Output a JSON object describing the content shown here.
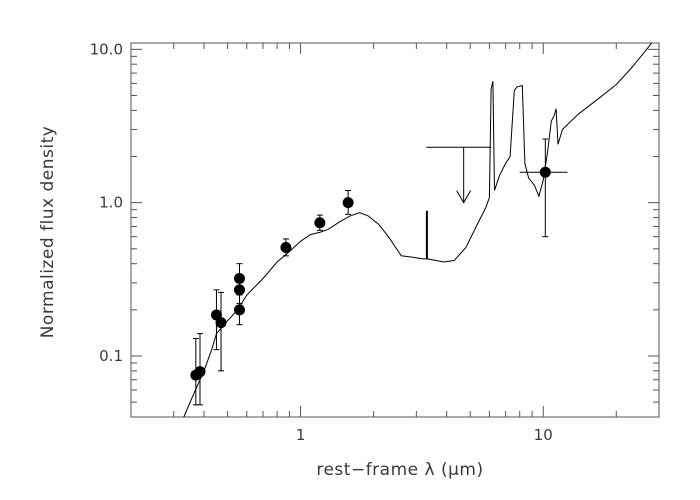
{
  "chart_data": {
    "type": "scatter",
    "title": "",
    "xlabel": "rest−frame λ (μm)",
    "ylabel": "Normalized flux density",
    "xscale": "log",
    "yscale": "log",
    "xlim": [
      0.2,
      30
    ],
    "ylim": [
      0.04,
      11
    ],
    "xticks": [
      {
        "value": 1,
        "label": "1"
      },
      {
        "value": 10,
        "label": "10"
      }
    ],
    "yticks": [
      {
        "value": 0.1,
        "label": "0.1"
      },
      {
        "value": 1.0,
        "label": "1.0"
      },
      {
        "value": 10.0,
        "label": "10.0"
      }
    ],
    "grid": false,
    "legend": "none",
    "colors": {
      "axes": "#555555",
      "data": "#000000",
      "text": "#3a3a3a"
    },
    "points": [
      {
        "x": 0.37,
        "y": 0.075,
        "ylow": 0.048,
        "yhigh": 0.13
      },
      {
        "x": 0.385,
        "y": 0.079,
        "ylow": 0.048,
        "yhigh": 0.14
      },
      {
        "x": 0.45,
        "y": 0.185,
        "ylow": 0.11,
        "yhigh": 0.27
      },
      {
        "x": 0.47,
        "y": 0.165,
        "ylow": 0.08,
        "yhigh": 0.26
      },
      {
        "x": 0.56,
        "y": 0.32,
        "ylow": 0.26,
        "yhigh": 0.4
      },
      {
        "x": 0.56,
        "y": 0.27,
        "ylow": 0.22,
        "yhigh": 0.34
      },
      {
        "x": 0.56,
        "y": 0.2,
        "ylow": 0.16,
        "yhigh": 0.25
      },
      {
        "x": 0.87,
        "y": 0.51,
        "ylow": 0.45,
        "yhigh": 0.58
      },
      {
        "x": 1.2,
        "y": 0.74,
        "ylow": 0.66,
        "yhigh": 0.83
      },
      {
        "x": 1.57,
        "y": 1.0,
        "ylow": 0.84,
        "yhigh": 1.2
      },
      {
        "x": 10.2,
        "y": 1.58,
        "ylow": 0.6,
        "yhigh": 2.6,
        "xlow": 8.0,
        "xhigh": 12.6
      }
    ],
    "upper_limit": {
      "x": 4.7,
      "y": 2.3,
      "xlow": 3.3,
      "xhigh": 6.1,
      "arrow_to": 1.0
    },
    "model": [
      [
        0.33,
        0.04
      ],
      [
        0.36,
        0.055
      ],
      [
        0.4,
        0.08
      ],
      [
        0.43,
        0.11
      ],
      [
        0.45,
        0.14
      ],
      [
        0.5,
        0.17
      ],
      [
        0.55,
        0.2
      ],
      [
        0.6,
        0.25
      ],
      [
        0.7,
        0.32
      ],
      [
        0.8,
        0.41
      ],
      [
        0.9,
        0.48
      ],
      [
        1.0,
        0.56
      ],
      [
        1.1,
        0.62
      ],
      [
        1.2,
        0.64
      ],
      [
        1.3,
        0.67
      ],
      [
        1.45,
        0.75
      ],
      [
        1.6,
        0.82
      ],
      [
        1.75,
        0.86
      ],
      [
        1.9,
        0.82
      ],
      [
        2.1,
        0.72
      ],
      [
        2.3,
        0.6
      ],
      [
        2.6,
        0.45
      ],
      [
        2.9,
        0.44
      ],
      [
        3.2,
        0.43
      ],
      [
        3.3,
        0.43
      ],
      [
        3.3,
        0.88
      ],
      [
        3.33,
        0.88
      ],
      [
        3.33,
        0.43
      ],
      [
        3.6,
        0.42
      ],
      [
        3.9,
        0.41
      ],
      [
        4.3,
        0.42
      ],
      [
        4.8,
        0.51
      ],
      [
        5.3,
        0.7
      ],
      [
        5.8,
        0.93
      ],
      [
        6.0,
        1.08
      ],
      [
        6.1,
        5.5
      ],
      [
        6.2,
        6.2
      ],
      [
        6.3,
        1.2
      ],
      [
        6.6,
        1.5
      ],
      [
        7.0,
        1.8
      ],
      [
        7.3,
        2.0
      ],
      [
        7.6,
        5.4
      ],
      [
        7.8,
        5.7
      ],
      [
        8.2,
        5.8
      ],
      [
        8.4,
        1.8
      ],
      [
        8.7,
        1.45
      ],
      [
        9.2,
        1.3
      ],
      [
        9.6,
        1.1
      ],
      [
        10.0,
        1.4
      ],
      [
        10.4,
        2.1
      ],
      [
        10.8,
        3.4
      ],
      [
        11.1,
        3.7
      ],
      [
        11.3,
        4.1
      ],
      [
        11.5,
        2.4
      ],
      [
        12.0,
        3.0
      ],
      [
        14.0,
        3.8
      ],
      [
        17.0,
        4.8
      ],
      [
        20.0,
        5.9
      ],
      [
        23.0,
        7.5
      ],
      [
        26.0,
        9.5
      ],
      [
        28.0,
        11.0
      ]
    ]
  }
}
